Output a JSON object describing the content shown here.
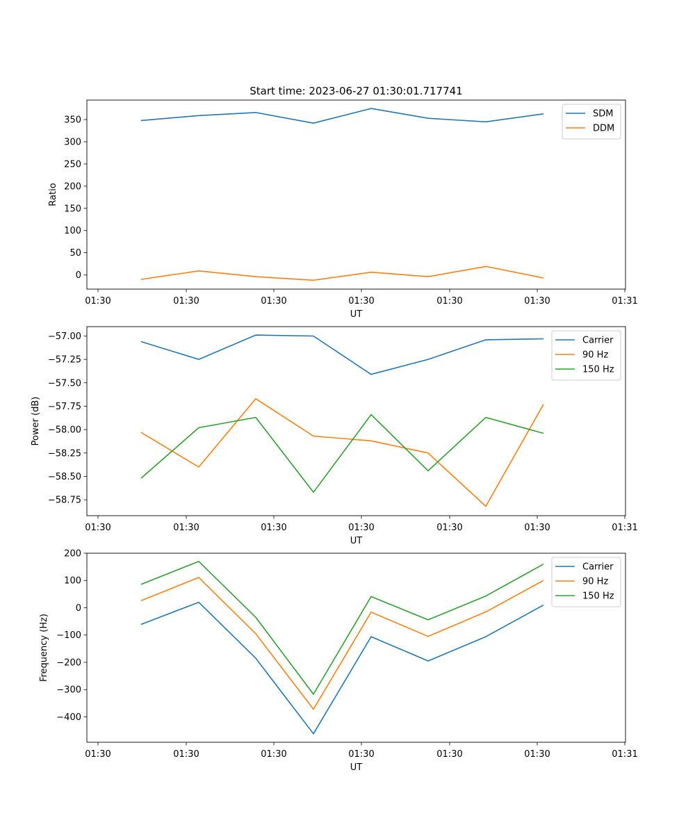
{
  "title": "Start time: 2023-06-27 01:30:01.717741",
  "colors": {
    "blue": "#1f77b4",
    "orange": "#ff7f0e",
    "green": "#2ca02c"
  },
  "chart_data": [
    {
      "type": "line",
      "title": "Start time: 2023-06-27 01:30:01.717741",
      "xlabel": "UT",
      "ylabel": "Ratio",
      "x_ticks": [
        "01:30",
        "01:30",
        "01:30",
        "01:30",
        "01:30",
        "01:30",
        "01:31"
      ],
      "y_ticks": [
        0,
        50,
        100,
        150,
        200,
        250,
        300,
        350
      ],
      "ylim": [
        -32,
        394
      ],
      "legend": "top-right",
      "grid": false,
      "series": [
        {
          "name": "SDM",
          "color": "#1f77b4",
          "values": [
            348,
            359,
            366,
            342,
            375,
            353,
            345,
            363
          ]
        },
        {
          "name": "DDM",
          "color": "#ff7f0e",
          "values": [
            -10,
            9,
            -4,
            -12,
            6,
            -4,
            19,
            -7
          ]
        }
      ]
    },
    {
      "type": "line",
      "title": "",
      "xlabel": "UT",
      "ylabel": "Power (dB)",
      "x_ticks": [
        "01:30",
        "01:30",
        "01:30",
        "01:30",
        "01:30",
        "01:30",
        "01:31"
      ],
      "y_ticks": [
        -57.0,
        -57.25,
        -57.5,
        -57.75,
        -58.0,
        -58.25,
        -58.5,
        -58.75
      ],
      "y_tick_labels": [
        "−57.00",
        "−57.25",
        "−57.50",
        "−57.75",
        "−58.00",
        "−58.25",
        "−58.50",
        "−58.75"
      ],
      "ylim": [
        -58.92,
        -56.9
      ],
      "legend": "top-right",
      "grid": false,
      "series": [
        {
          "name": "Carrier",
          "color": "#1f77b4",
          "values": [
            -57.06,
            -57.25,
            -56.99,
            -57.0,
            -57.41,
            -57.25,
            -57.04,
            -57.03
          ]
        },
        {
          "name": "90 Hz",
          "color": "#ff7f0e",
          "values": [
            -58.03,
            -58.4,
            -57.67,
            -58.07,
            -58.12,
            -58.25,
            -58.82,
            -57.73
          ]
        },
        {
          "name": "150 Hz",
          "color": "#2ca02c",
          "values": [
            -58.52,
            -57.98,
            -57.87,
            -58.67,
            -57.84,
            -58.44,
            -57.87,
            -58.04
          ]
        }
      ]
    },
    {
      "type": "line",
      "title": "",
      "xlabel": "UT",
      "ylabel": "Frequency (Hz)",
      "x_ticks": [
        "01:30",
        "01:30",
        "01:30",
        "01:30",
        "01:30",
        "01:30",
        "01:31"
      ],
      "y_ticks": [
        200,
        100,
        0,
        -100,
        -200,
        -300,
        -400
      ],
      "y_tick_labels": [
        "200",
        "100",
        "0",
        "−100",
        "−200",
        "−300",
        "−400"
      ],
      "ylim": [
        -493,
        200
      ],
      "legend": "top-right",
      "grid": false,
      "series": [
        {
          "name": "Carrier",
          "color": "#1f77b4",
          "values": [
            -61,
            20,
            -185,
            -462,
            -106,
            -195,
            -106,
            10
          ]
        },
        {
          "name": "90 Hz",
          "color": "#ff7f0e",
          "values": [
            26,
            111,
            -95,
            -372,
            -16,
            -105,
            -15,
            100
          ]
        },
        {
          "name": "150 Hz",
          "color": "#2ca02c",
          "values": [
            86,
            170,
            -35,
            -317,
            41,
            -44,
            43,
            160
          ]
        }
      ]
    }
  ]
}
